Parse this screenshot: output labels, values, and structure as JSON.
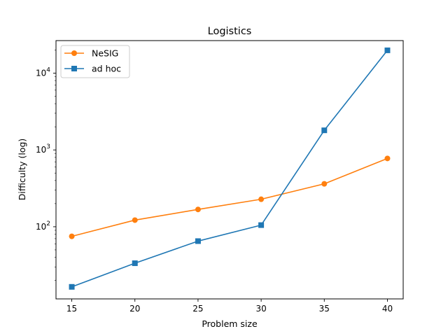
{
  "chart_data": {
    "type": "line",
    "title": "Logistics",
    "xlabel": "Problem size",
    "ylabel": "Difficulty (log)",
    "yscale": "log",
    "x": [
      15,
      20,
      25,
      30,
      35,
      40
    ],
    "xticks": [
      "15",
      "20",
      "25",
      "30",
      "35",
      "40"
    ],
    "yticks": [
      {
        "base": "10",
        "exp": "2",
        "value": 100
      },
      {
        "base": "10",
        "exp": "3",
        "value": 1000
      },
      {
        "base": "10",
        "exp": "4",
        "value": 10000
      }
    ],
    "xlim": [
      13.75,
      41.25
    ],
    "ylim": [
      11.5,
      26500
    ],
    "grid": false,
    "legend_position": "upper-left",
    "series": [
      {
        "name": "NeSIG",
        "color": "#ff7f0e",
        "marker": "circle",
        "values": [
          75,
          122,
          168,
          228,
          362,
          775
        ]
      },
      {
        "name": "ad hoc",
        "color": "#1f77b4",
        "marker": "square",
        "values": [
          16.5,
          33.5,
          65,
          105,
          1800,
          19800
        ]
      }
    ]
  }
}
